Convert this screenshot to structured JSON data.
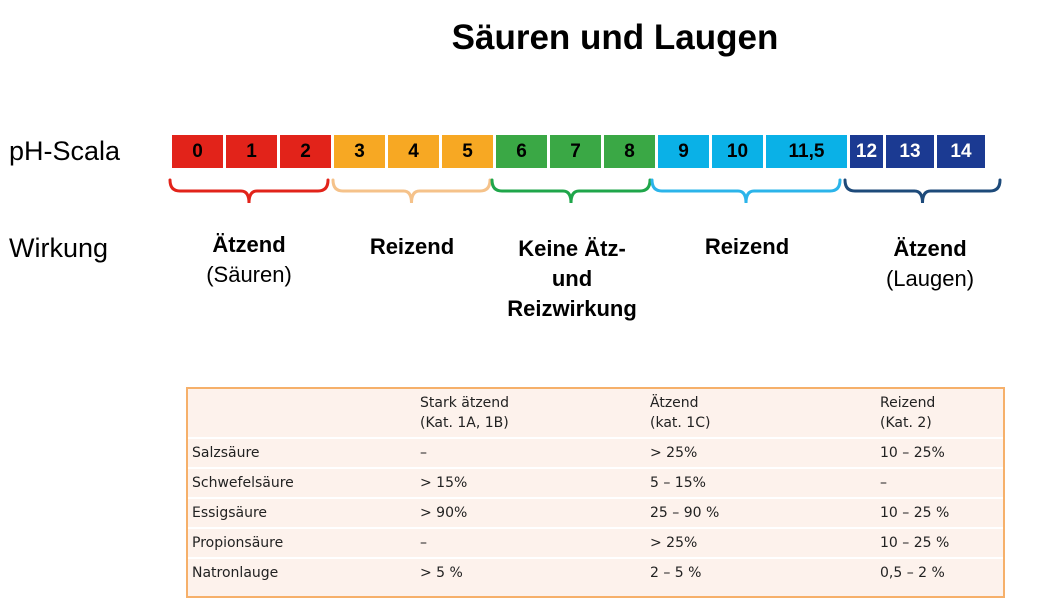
{
  "title": "Säuren und Laugen",
  "labels": {
    "ph_scale": "pH-Scala",
    "effect": "Wirkung"
  },
  "ph_values": [
    {
      "label": "0",
      "color": "#e2231a"
    },
    {
      "label": "1",
      "color": "#e2231a"
    },
    {
      "label": "2",
      "color": "#e2231a"
    },
    {
      "label": "3",
      "color": "#f7a823"
    },
    {
      "label": "4",
      "color": "#f7a823"
    },
    {
      "label": "5",
      "color": "#f7a823"
    },
    {
      "label": "6",
      "color": "#3aa845"
    },
    {
      "label": "7",
      "color": "#3aa845"
    },
    {
      "label": "8",
      "color": "#3aa845"
    },
    {
      "label": "9",
      "color": "#0ab1e7"
    },
    {
      "label": "10",
      "color": "#0ab1e7"
    },
    {
      "label": "11,5",
      "color": "#0ab1e7"
    },
    {
      "label": "12",
      "color": "#1b3a92"
    },
    {
      "label": "13",
      "color": "#1b3a92"
    },
    {
      "label": "14",
      "color": "#1b3a92"
    }
  ],
  "effects": [
    {
      "strong": "Ätzend",
      "sub": "(Säuren)",
      "bracket_color": "#e2231a"
    },
    {
      "strong": "Reizend",
      "sub": "",
      "bracket_color": "#f5c28a"
    },
    {
      "strong": "Keine Ätz- und Reizwirkung",
      "sub": "",
      "bracket_color": "#1fa64a"
    },
    {
      "strong": "Reizend",
      "sub": "",
      "bracket_color": "#2bb4ea"
    },
    {
      "strong": "Ätzend",
      "sub": "(Laugen)",
      "bracket_color": "#1d4a7a"
    }
  ],
  "table": {
    "headers": [
      {
        "line1": "",
        "line2": ""
      },
      {
        "line1": "Stark ätzend",
        "line2": "(Kat. 1A, 1B)"
      },
      {
        "line1": "Ätzend",
        "line2": "(kat. 1C)"
      },
      {
        "line1": "Reizend",
        "line2": "(Kat. 2)"
      }
    ],
    "rows": [
      [
        "Salzsäure",
        "–",
        "> 25%",
        "10 – 25%"
      ],
      [
        "Schwefelsäure",
        "> 15%",
        "5 – 15%",
        "–"
      ],
      [
        "Essigsäure",
        "> 90%",
        "25 – 90 %",
        "10 – 25 %"
      ],
      [
        "Propionsäure",
        "–",
        "> 25%",
        "10 – 25 %"
      ],
      [
        "Natronlauge",
        "> 5 %",
        "2 – 5 %",
        "0,5 – 2 %"
      ]
    ]
  }
}
